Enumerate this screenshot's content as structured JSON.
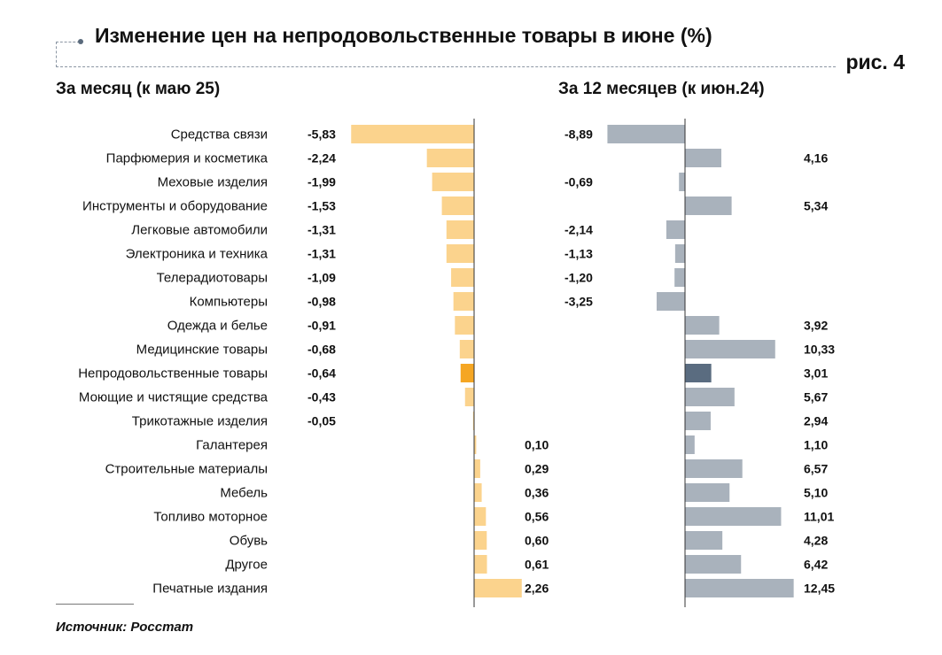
{
  "title": "Изменение цен на непродовольственные товары в июне (%)",
  "figure_label": "рис. 4",
  "source": "Источник: Росстат",
  "colors": {
    "monthly_bar": "#fbd38d",
    "monthly_highlight": "#f5a623",
    "annual_bar": "#a9b2bc",
    "annual_highlight": "#5a6c80",
    "axis": "#333333"
  },
  "chart_data": [
    {
      "type": "bar",
      "orientation": "horizontal",
      "title": "За месяц (к маю 25)",
      "categories": [
        "Средства связи",
        "Парфюмерия и косметика",
        "Меховые изделия",
        "Инструменты и оборудование",
        "Легковые автомобили",
        "Электроника и техника",
        "Телерадиотовары",
        "Компьютеры",
        "Одежда и белье",
        "Медицинские товары",
        "Непродовольственные товары",
        "Моющие и чистящие средства",
        "Трикотажные изделия",
        "Галантерея",
        "Строительные материалы",
        "Мебель",
        "Топливо моторное",
        "Обувь",
        "Другое",
        "Печатные издания"
      ],
      "values": [
        -5.83,
        -2.24,
        -1.99,
        -1.53,
        -1.31,
        -1.31,
        -1.09,
        -0.98,
        -0.91,
        -0.68,
        -0.64,
        -0.43,
        -0.05,
        0.1,
        0.29,
        0.36,
        0.56,
        0.6,
        0.61,
        2.26
      ],
      "labels": [
        "-5,83",
        "-2,24",
        "-1,99",
        "-1,53",
        "-1,31",
        "-1,31",
        "-1,09",
        "-0,98",
        "-0,91",
        "-0,68",
        "-0,64",
        "-0,43",
        "-0,05",
        "0,10",
        "0,29",
        "0,36",
        "0,56",
        "0,60",
        "0,61",
        "2,26"
      ],
      "highlight_index": 10
    },
    {
      "type": "bar",
      "orientation": "horizontal",
      "title": "За 12 месяцев (к июн.24)",
      "categories": [
        "Средства связи",
        "Парфюмерия и косметика",
        "Меховые изделия",
        "Инструменты и оборудование",
        "Легковые автомобили",
        "Электроника и техника",
        "Телерадиотовары",
        "Компьютеры",
        "Одежда и белье",
        "Медицинские товары",
        "Непродовольственные товары",
        "Моющие и чистящие средства",
        "Трикотажные изделия",
        "Галантерея",
        "Строительные материалы",
        "Мебель",
        "Топливо моторное",
        "Обувь",
        "Другое",
        "Печатные издания"
      ],
      "values": [
        -8.89,
        4.16,
        -0.69,
        5.34,
        -2.14,
        -1.13,
        -1.2,
        -3.25,
        3.92,
        10.33,
        3.01,
        5.67,
        2.94,
        1.1,
        6.57,
        5.1,
        11.01,
        4.28,
        6.42,
        12.45
      ],
      "labels": [
        "-8,89",
        "4,16",
        "-0,69",
        "5,34",
        "-2,14",
        "-1,13",
        "-1,20",
        "-3,25",
        "3,92",
        "10,33",
        "3,01",
        "5,67",
        "2,94",
        "1,10",
        "6,57",
        "5,10",
        "11,01",
        "4,28",
        "6,42",
        "12,45"
      ],
      "highlight_index": 10
    }
  ]
}
